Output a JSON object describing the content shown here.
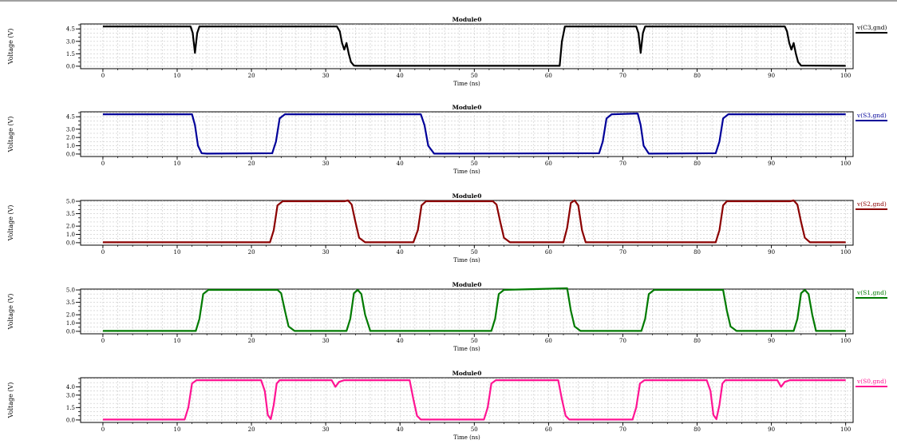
{
  "chart_data": [
    {
      "type": "line",
      "title": "Module0",
      "xlabel": "Time (ns)",
      "ylabel": "Voltage (V)",
      "xlim": [
        -3,
        101
      ],
      "ylim": [
        -0.3,
        5.1
      ],
      "xticks": [
        0,
        10,
        20,
        30,
        40,
        50,
        60,
        70,
        80,
        90,
        100
      ],
      "yticks": [
        0.0,
        1.5,
        3.0,
        4.5
      ],
      "ytick_labels": [
        "0.0",
        "1.5",
        "3.0",
        "4.5"
      ],
      "grid": true,
      "legend_position": "right",
      "series": [
        {
          "name": "v(C3,gnd)",
          "color": "#000000",
          "x": [
            0,
            11.8,
            12.1,
            12.4,
            12.7,
            13.0,
            13.5,
            31.5,
            31.9,
            32.2,
            32.5,
            32.8,
            33.1,
            33.4,
            33.8,
            34.2,
            61.5,
            61.8,
            62.2,
            71.8,
            72.1,
            72.4,
            72.7,
            73.0,
            73.5,
            91.8,
            92.1,
            92.4,
            92.7,
            93.0,
            93.3,
            93.6,
            94.0,
            100
          ],
          "y": [
            4.8,
            4.8,
            4.0,
            1.6,
            4.0,
            4.8,
            4.8,
            4.8,
            4.2,
            2.8,
            2.0,
            2.8,
            1.5,
            0.5,
            0.08,
            0.05,
            0.05,
            3.0,
            4.8,
            4.8,
            4.0,
            1.6,
            4.0,
            4.8,
            4.8,
            4.8,
            4.2,
            2.8,
            2.0,
            2.8,
            1.5,
            0.5,
            0.08,
            0.05
          ]
        }
      ]
    },
    {
      "type": "line",
      "title": "Module0",
      "xlabel": "Time (ns)",
      "ylabel": "Voltage (V)",
      "xlim": [
        -3,
        101
      ],
      "ylim": [
        -0.3,
        5.1
      ],
      "xticks": [
        0,
        10,
        20,
        30,
        40,
        50,
        60,
        70,
        80,
        90,
        100
      ],
      "yticks": [
        0.0,
        1.0,
        2.0,
        3.0,
        4.5
      ],
      "ytick_labels": [
        "0.0",
        "1.0",
        "2.0",
        "3.0",
        "4.5"
      ],
      "grid": true,
      "legend_position": "right",
      "series": [
        {
          "name": "v(S3,gnd)",
          "color": "#000099",
          "x": [
            0,
            12.0,
            12.4,
            12.8,
            13.3,
            14.0,
            22.8,
            23.3,
            23.8,
            24.5,
            42.8,
            43.3,
            43.8,
            44.6,
            66.8,
            67.3,
            67.8,
            68.5,
            72.0,
            72.4,
            72.8,
            73.5,
            82.5,
            83.0,
            83.5,
            84.2,
            100
          ],
          "y": [
            4.8,
            4.8,
            3.5,
            1.0,
            0.1,
            0.05,
            0.1,
            1.5,
            4.3,
            4.8,
            4.8,
            3.5,
            1.0,
            0.05,
            0.1,
            1.5,
            4.3,
            4.8,
            4.9,
            3.5,
            1.0,
            0.05,
            0.1,
            1.5,
            4.3,
            4.8,
            4.8
          ]
        }
      ]
    },
    {
      "type": "line",
      "title": "Module0",
      "xlabel": "Time (ns)",
      "ylabel": "Voltage (V)",
      "xlim": [
        -3,
        101
      ],
      "ylim": [
        -0.3,
        5.1
      ],
      "xticks": [
        0,
        10,
        20,
        30,
        40,
        50,
        60,
        70,
        80,
        90,
        100
      ],
      "yticks": [
        0.0,
        1.0,
        2.0,
        3.5,
        5.0
      ],
      "ytick_labels": [
        "0.0",
        "1.0",
        "2.0",
        "3.5",
        "5.0"
      ],
      "grid": true,
      "legend_position": "right",
      "series": [
        {
          "name": "v(S2,gnd)",
          "color": "#8b0000",
          "x": [
            0,
            22.5,
            23.0,
            23.5,
            24.2,
            32.5,
            33.0,
            33.5,
            34.0,
            34.5,
            35.3,
            41.8,
            42.4,
            42.9,
            43.5,
            52.5,
            53.0,
            53.5,
            54.0,
            54.8,
            62.0,
            62.5,
            63.0,
            63.5,
            64.0,
            64.5,
            65.0,
            82.5,
            83.0,
            83.5,
            84.0,
            92.5,
            93.0,
            93.5,
            94.0,
            94.5,
            95.2,
            100
          ],
          "y": [
            0.05,
            0.05,
            1.5,
            4.5,
            5.0,
            5.0,
            5.1,
            4.6,
            2.5,
            0.6,
            0.05,
            0.05,
            1.5,
            4.5,
            5.0,
            5.0,
            4.6,
            2.5,
            0.6,
            0.05,
            0.05,
            1.8,
            4.8,
            5.1,
            4.5,
            1.5,
            0.05,
            0.05,
            1.5,
            4.5,
            5.0,
            5.0,
            5.1,
            4.6,
            2.5,
            0.6,
            0.05,
            0.05
          ]
        }
      ]
    },
    {
      "type": "line",
      "title": "Module0",
      "xlabel": "Time (ns)",
      "ylabel": "Voltage (V)",
      "xlim": [
        -3,
        101
      ],
      "ylim": [
        -0.3,
        5.1
      ],
      "xticks": [
        0,
        10,
        20,
        30,
        40,
        50,
        60,
        70,
        80,
        90,
        100
      ],
      "yticks": [
        0.0,
        1.0,
        2.0,
        3.5,
        5.0
      ],
      "ytick_labels": [
        "0.0",
        "1.0",
        "2.0",
        "3.5",
        "5.0"
      ],
      "grid": true,
      "legend_position": "right",
      "series": [
        {
          "name": "v(S1,gnd)",
          "color": "#007a00",
          "x": [
            0,
            12.5,
            13.0,
            13.5,
            14.2,
            23.5,
            24.0,
            24.5,
            25.0,
            25.8,
            32.8,
            33.3,
            33.8,
            34.3,
            34.8,
            35.3,
            36.0,
            52.3,
            52.8,
            53.3,
            54.0,
            62.5,
            63.0,
            63.5,
            64.3,
            72.5,
            73.0,
            73.5,
            74.2,
            83.5,
            84.0,
            84.5,
            85.3,
            93.0,
            93.5,
            94.0,
            94.5,
            95.0,
            95.5,
            96.0,
            100
          ],
          "y": [
            0.05,
            0.05,
            1.5,
            4.5,
            5.0,
            5.0,
            4.6,
            2.5,
            0.6,
            0.05,
            0.05,
            1.5,
            4.6,
            5.0,
            4.5,
            2.0,
            0.05,
            0.05,
            1.5,
            4.5,
            5.0,
            5.2,
            2.5,
            0.6,
            0.05,
            0.05,
            1.5,
            4.5,
            5.0,
            5.0,
            2.5,
            0.6,
            0.05,
            0.05,
            1.5,
            4.6,
            5.0,
            4.5,
            2.0,
            0.05,
            0.05
          ]
        }
      ]
    },
    {
      "type": "line",
      "title": "Module0",
      "xlabel": "Time (ns)",
      "ylabel": "Voltage (V)",
      "xlim": [
        -3,
        101
      ],
      "ylim": [
        -0.3,
        5.1
      ],
      "xticks": [
        0,
        10,
        20,
        30,
        40,
        50,
        60,
        70,
        80,
        90,
        100
      ],
      "yticks": [
        0.0,
        1.5,
        3.0,
        4.0
      ],
      "ytick_labels": [
        "0.0",
        "1.5",
        "3.0",
        "4.0"
      ],
      "grid": true,
      "legend_position": "right",
      "series": [
        {
          "name": "v(S0,gnd)",
          "color": "#ff1493",
          "x": [
            0,
            11.0,
            11.5,
            12.0,
            12.6,
            21.3,
            21.8,
            22.2,
            22.6,
            23.0,
            23.4,
            23.8,
            30.8,
            31.3,
            31.8,
            32.5,
            41.3,
            41.8,
            42.3,
            42.8,
            51.3,
            51.8,
            52.3,
            52.9,
            61.3,
            61.8,
            62.3,
            62.8,
            71.3,
            71.8,
            72.3,
            72.9,
            81.3,
            81.8,
            82.2,
            82.6,
            83.0,
            83.4,
            83.8,
            90.8,
            91.3,
            91.8,
            92.5,
            100
          ],
          "y": [
            0.05,
            0.05,
            1.5,
            4.4,
            4.8,
            4.8,
            3.5,
            0.6,
            0.1,
            1.8,
            4.4,
            4.8,
            4.8,
            4.0,
            4.6,
            4.8,
            4.8,
            2.5,
            0.5,
            0.05,
            0.05,
            1.5,
            4.4,
            4.8,
            4.8,
            2.5,
            0.5,
            0.05,
            0.05,
            1.5,
            4.4,
            4.8,
            4.8,
            3.5,
            0.6,
            0.1,
            1.8,
            4.4,
            4.8,
            4.8,
            4.0,
            4.6,
            4.8,
            4.8
          ]
        }
      ]
    }
  ]
}
